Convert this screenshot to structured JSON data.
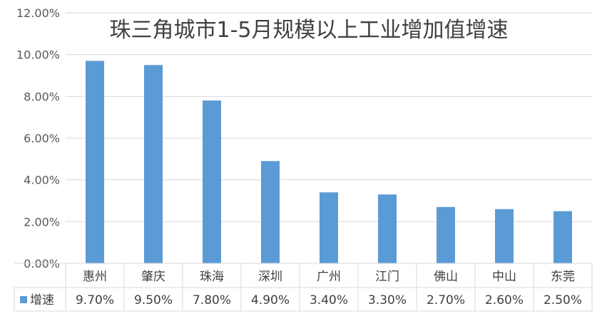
{
  "chart_data": {
    "type": "bar",
    "title": "珠三角城市1-5月规模以上工业增加值增速",
    "xlabel": "",
    "ylabel": "",
    "categories": [
      "惠州",
      "肇庆",
      "珠海",
      "深圳",
      "广州",
      "江门",
      "佛山",
      "中山",
      "东莞"
    ],
    "series": [
      {
        "name": "增速",
        "values": [
          9.7,
          9.5,
          7.8,
          4.9,
          3.4,
          3.3,
          2.7,
          2.6,
          2.5
        ],
        "labels": [
          "9.70%",
          "9.50%",
          "7.80%",
          "4.90%",
          "3.40%",
          "3.30%",
          "2.70%",
          "2.60%",
          "2.50%"
        ],
        "color": "#5b9bd5"
      }
    ],
    "ylim": [
      0,
      12
    ],
    "yticks": [
      0,
      2,
      4,
      6,
      8,
      10,
      12
    ],
    "ytick_labels": [
      "0.00%",
      "2.00%",
      "4.00%",
      "6.00%",
      "8.00%",
      "10.00%",
      "12.00%"
    ],
    "grid": true,
    "legend": "data-table-left",
    "gridline_color": "#d9d9d9"
  }
}
